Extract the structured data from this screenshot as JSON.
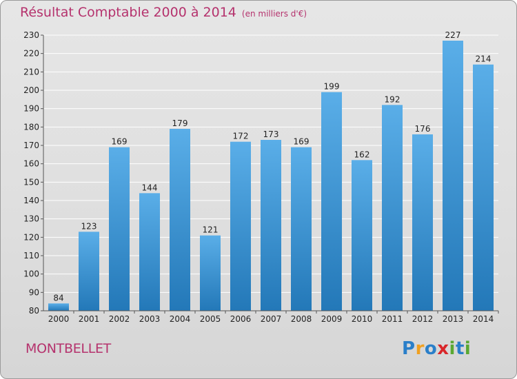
{
  "header": {
    "title": "Résultat Comptable 2000 à 2014",
    "subtitle": "(en milliers d'€)"
  },
  "footer": {
    "commune": "MONTBELLET",
    "logo_text": "Proxiti"
  },
  "colors": {
    "title": "#b5326d",
    "bar_top": "#5aaee8",
    "bar_bottom": "#2378b8",
    "grid": "#ffffff"
  },
  "chart_data": {
    "type": "bar",
    "title": "Résultat Comptable 2000 à 2014",
    "subtitle": "(en milliers d'€)",
    "xlabel": "",
    "ylabel": "",
    "categories": [
      "2000",
      "2001",
      "2002",
      "2003",
      "2004",
      "2005",
      "2006",
      "2007",
      "2008",
      "2009",
      "2010",
      "2011",
      "2012",
      "2013",
      "2014"
    ],
    "values": [
      84,
      123,
      169,
      144,
      179,
      121,
      172,
      173,
      169,
      199,
      162,
      192,
      176,
      227,
      214
    ],
    "ylim": [
      80,
      230
    ],
    "yticks": [
      80,
      90,
      100,
      110,
      120,
      130,
      140,
      150,
      160,
      170,
      180,
      190,
      200,
      210,
      220,
      230
    ],
    "grid": true,
    "legend": "none",
    "data_labels": true
  }
}
